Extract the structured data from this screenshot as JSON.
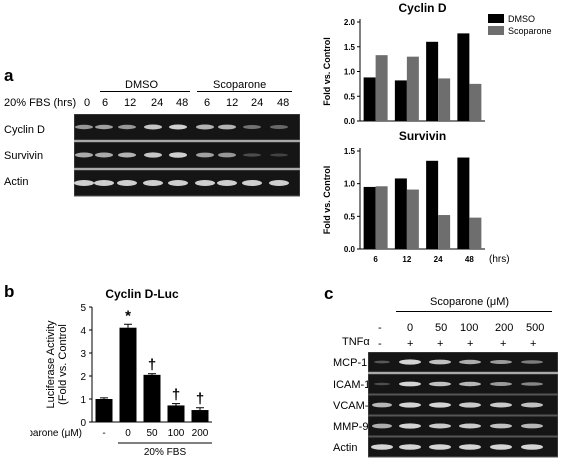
{
  "panel_a": {
    "letter": "a",
    "fbs_label": "20% FBS (hrs)",
    "groups": [
      {
        "label": "DMSO",
        "timepoints": [
          "6",
          "12",
          "24",
          "48"
        ]
      },
      {
        "label": "Scoparone",
        "timepoints": [
          "6",
          "12",
          "24",
          "48"
        ]
      }
    ],
    "control_timepoint": "0",
    "rows": [
      "Cyclin D",
      "Survivin",
      "Actin"
    ]
  },
  "panel_b": {
    "letter": "b",
    "xlabel_row": "Scoparone (μM)",
    "fbs_label": "20% FBS"
  },
  "panel_c": {
    "letter": "c",
    "group_label": "Scoparone (μM)",
    "tnf_label": "TNFα",
    "concentrations": [
      "-",
      "0",
      "50",
      "100",
      "200",
      "500"
    ],
    "tnf_marks": [
      "-",
      "+",
      "+",
      "+",
      "+",
      "+"
    ],
    "rows": [
      "MCP-1",
      "ICAM-1",
      "VCAM-1",
      "MMP-9",
      "Actin"
    ]
  },
  "chart_data": [
    {
      "type": "bar",
      "title": "Cyclin D",
      "ylabel": "Fold vs. Control",
      "xlabel": "",
      "categories": [
        "6",
        "12",
        "24",
        "48"
      ],
      "ylim": [
        0,
        2.0
      ],
      "yticks": [
        "0.0",
        "0.5",
        "1.0",
        "1.5",
        "2.0"
      ],
      "legend": "top-right",
      "series": [
        {
          "name": "DMSO",
          "color": "#000000",
          "values": [
            0.88,
            0.82,
            1.6,
            1.77
          ]
        },
        {
          "name": "Scoparone",
          "color": "#6e6e6e",
          "values": [
            1.33,
            1.3,
            0.86,
            0.75
          ]
        }
      ]
    },
    {
      "type": "bar",
      "title": "Survivin",
      "ylabel": "Fold vs. Control",
      "xlabel": "(hrs)",
      "categories": [
        "6",
        "12",
        "24",
        "48"
      ],
      "ylim": [
        0,
        1.5
      ],
      "yticks": [
        "0.0",
        "0.5",
        "1.0",
        "1.5"
      ],
      "series": [
        {
          "name": "DMSO",
          "color": "#000000",
          "values": [
            0.95,
            1.08,
            1.35,
            1.4
          ]
        },
        {
          "name": "Scoparone",
          "color": "#6e6e6e",
          "values": [
            0.96,
            0.91,
            0.52,
            0.48
          ]
        }
      ]
    },
    {
      "type": "bar",
      "title": "Cyclin D-Luc",
      "ylabel": "Luciferase Activity\n(Fold vs. Control",
      "xlabel": "",
      "categories": [
        "-",
        "0",
        "50",
        "100",
        "200"
      ],
      "ylim": [
        0,
        5
      ],
      "yticks": [
        "0",
        "1",
        "2",
        "3",
        "4",
        "5"
      ],
      "values": [
        1.0,
        4.1,
        2.05,
        0.72,
        0.52
      ],
      "errors": [
        0.05,
        0.15,
        0.05,
        0.08,
        0.1
      ],
      "annotations": [
        "",
        "*",
        "†",
        "†",
        "†"
      ],
      "color": "#000000"
    }
  ]
}
